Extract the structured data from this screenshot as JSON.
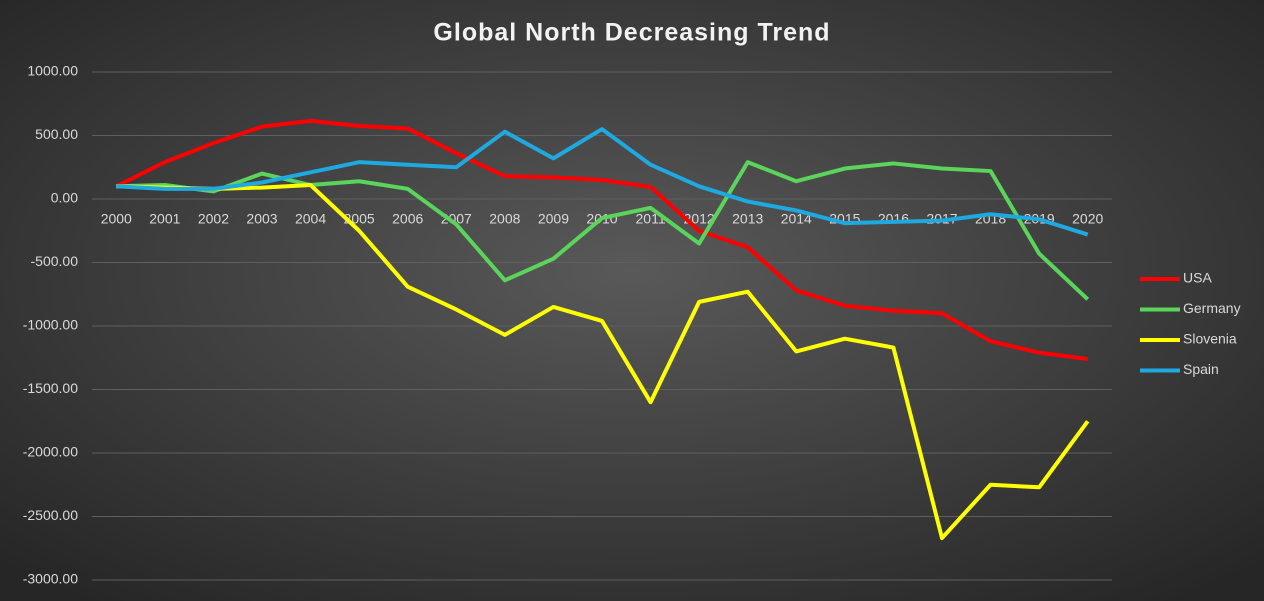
{
  "chart_data": {
    "type": "line",
    "title": "Global North Decreasing Trend",
    "categories": [
      "2000",
      "2001",
      "2002",
      "2003",
      "2004",
      "2005",
      "2006",
      "2007",
      "2008",
      "2009",
      "2010",
      "2011",
      "2012",
      "2013",
      "2014",
      "2015",
      "2016",
      "2017",
      "2018",
      "2019",
      "2020"
    ],
    "series": [
      {
        "name": "USA",
        "color": "#ff0000",
        "values": [
          100,
          290,
          440,
          570,
          615,
          575,
          555,
          360,
          180,
          170,
          150,
          95,
          -250,
          -380,
          -720,
          -840,
          -880,
          -900,
          -1120,
          -1210,
          -1260
        ]
      },
      {
        "name": "Germany",
        "color": "#5bd45b",
        "values": [
          100,
          110,
          60,
          200,
          110,
          140,
          80,
          -200,
          -640,
          -470,
          -150,
          -70,
          -350,
          290,
          140,
          240,
          280,
          240,
          220,
          -430,
          -790
        ]
      },
      {
        "name": "Slovenia",
        "color": "#ffff00",
        "values": [
          100,
          90,
          80,
          90,
          110,
          -250,
          -690,
          -870,
          -1070,
          -850,
          -960,
          -1600,
          -810,
          -730,
          -1200,
          -1100,
          -1170,
          -2670,
          -2250,
          -2270,
          -1750
        ]
      },
      {
        "name": "Spain",
        "color": "#1fa9e1",
        "values": [
          100,
          80,
          80,
          130,
          210,
          290,
          270,
          250,
          530,
          320,
          550,
          270,
          100,
          -20,
          -90,
          -190,
          -180,
          -170,
          -120,
          -160,
          -280
        ]
      }
    ],
    "ylim": [
      -3000,
      1000
    ],
    "yticks": [
      {
        "value": -3000,
        "label": "-3000.00"
      },
      {
        "value": -2500,
        "label": "-2500.00"
      },
      {
        "value": -2000,
        "label": "-2000.00"
      },
      {
        "value": -1500,
        "label": "-1500.00"
      },
      {
        "value": -1000,
        "label": "-1000.00"
      },
      {
        "value": -500,
        "label": "-500.00"
      },
      {
        "value": 0,
        "label": "0.00"
      },
      {
        "value": 500,
        "label": "500.00"
      },
      {
        "value": 1000,
        "label": "1000.00"
      }
    ],
    "grid": true,
    "legend": "right"
  }
}
